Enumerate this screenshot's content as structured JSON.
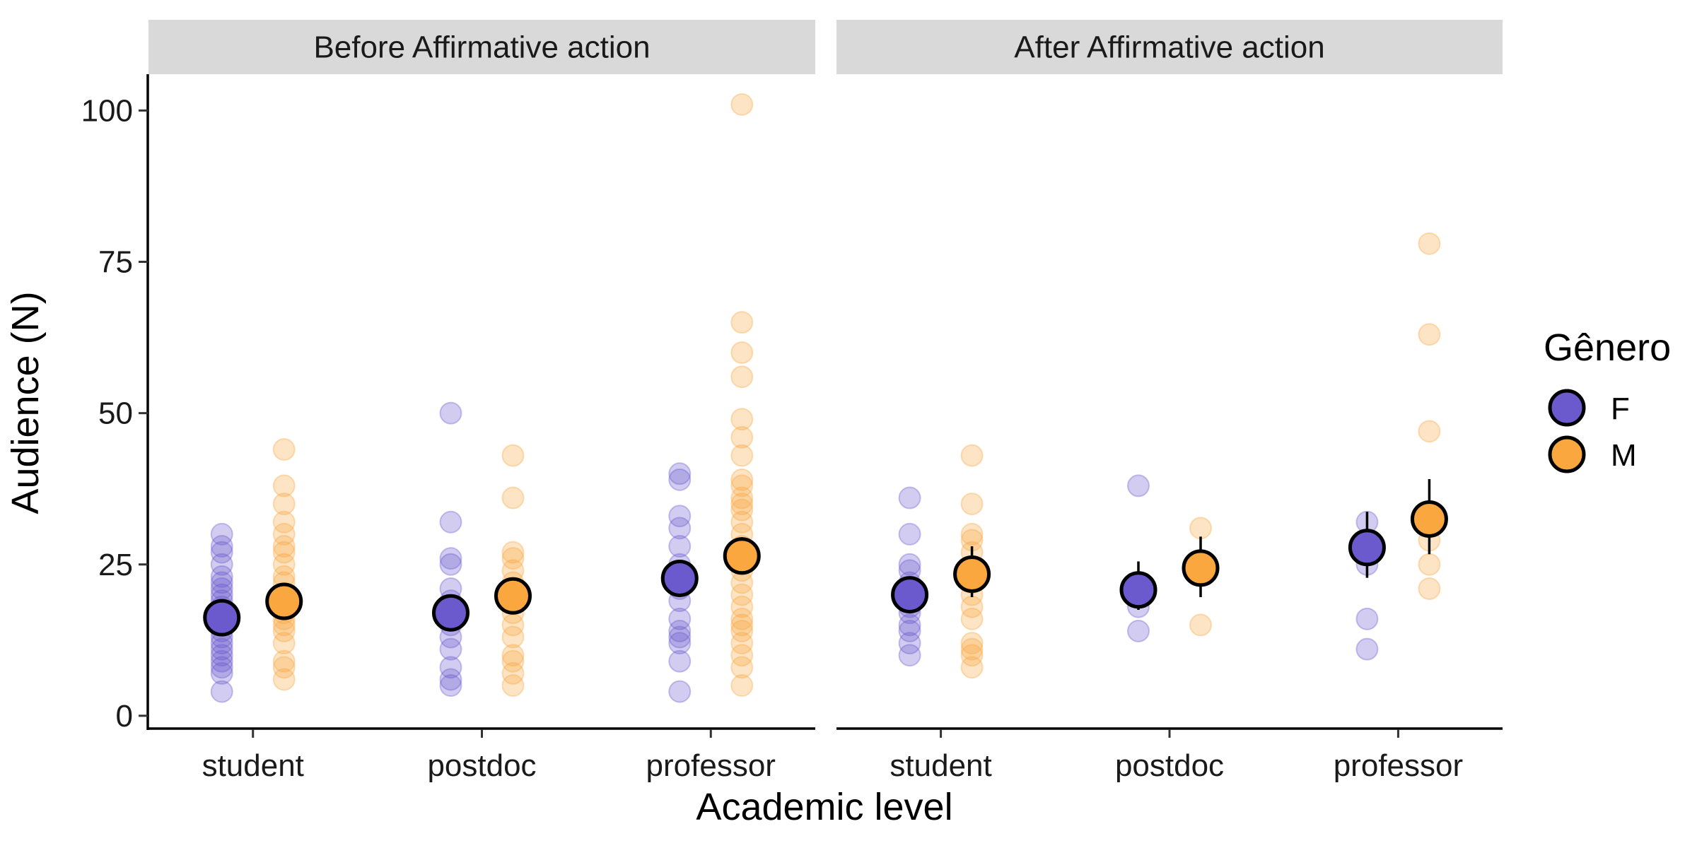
{
  "chart_data": {
    "type": "scatter",
    "xlabel": "Academic level",
    "ylabel": "Audience (N)",
    "ylim": [
      -2,
      106
    ],
    "yticks": [
      0,
      25,
      50,
      75,
      100
    ],
    "categories": [
      "student",
      "postdoc",
      "professor"
    ],
    "legend": {
      "title": "Gênero",
      "position": "right",
      "entries": [
        {
          "label": "F",
          "color": "#6A5ACD"
        },
        {
          "label": "M",
          "color": "#F9A73E"
        }
      ]
    },
    "colors": {
      "F": "#6A5ACD",
      "M": "#F9A73E"
    },
    "grid": false,
    "panels": [
      {
        "title": "Before Affirmative action",
        "points": {
          "student": {
            "F": [
              4,
              7,
              8,
              9,
              10,
              11,
              12,
              13,
              14,
              15,
              16,
              17,
              18,
              19,
              20,
              21,
              22,
              23,
              25,
              27,
              28,
              30
            ],
            "M": [
              6,
              8,
              9,
              12,
              14,
              15,
              16,
              17,
              18,
              19,
              20,
              22,
              23,
              25,
              27,
              28,
              30,
              32,
              35,
              38,
              44
            ]
          },
          "postdoc": {
            "F": [
              5,
              6,
              8,
              11,
              13,
              15,
              17,
              18,
              19,
              21,
              25,
              26,
              32,
              50
            ],
            "M": [
              5,
              7,
              9,
              10,
              13,
              15,
              17,
              19,
              20,
              22,
              24,
              26,
              27,
              36,
              43
            ]
          },
          "professor": {
            "F": [
              4,
              9,
              12,
              13,
              14,
              16,
              19,
              21,
              25,
              28,
              31,
              33,
              39,
              40
            ],
            "M": [
              5,
              8,
              10,
              12,
              14,
              15,
              16,
              18,
              20,
              22,
              24,
              25,
              26,
              28,
              30,
              32,
              34,
              35,
              36,
              38,
              39,
              43,
              46,
              49,
              56,
              60,
              65,
              101
            ]
          }
        },
        "means": {
          "student": {
            "F": {
              "mean": 16.2,
              "ci": [
                15.2,
                17.2
              ]
            },
            "M": {
              "mean": 18.9,
              "ci": [
                17.6,
                20.2
              ]
            }
          },
          "postdoc": {
            "F": {
              "mean": 17.0,
              "ci": [
                15.3,
                18.7
              ]
            },
            "M": {
              "mean": 19.8,
              "ci": [
                18.3,
                21.3
              ]
            }
          },
          "professor": {
            "F": {
              "mean": 22.7,
              "ci": [
                20.2,
                25.5
              ]
            },
            "M": {
              "mean": 26.4,
              "ci": [
                23.6,
                29.5
              ]
            }
          }
        }
      },
      {
        "title": "After Affirmative action",
        "points": {
          "student": {
            "F": [
              10,
              12,
              14,
              15,
              17,
              18,
              20,
              22,
              24,
              25,
              30,
              36
            ],
            "M": [
              8,
              10,
              11,
              12,
              16,
              18,
              20,
              22,
              24,
              27,
              29,
              30,
              35,
              43
            ]
          },
          "postdoc": {
            "F": [
              14,
              18,
              20,
              22,
              38
            ],
            "M": [
              15,
              24,
              31
            ]
          },
          "professor": {
            "F": [
              11,
              16,
              25,
              28,
              32
            ],
            "M": [
              21,
              25,
              29,
              47,
              63,
              78
            ]
          }
        },
        "means": {
          "student": {
            "F": {
              "mean": 20.0,
              "ci": [
                17.6,
                22.7
              ]
            },
            "M": {
              "mean": 23.4,
              "ci": [
                19.6,
                28.0
              ]
            }
          },
          "postdoc": {
            "F": {
              "mean": 20.8,
              "ci": [
                17.5,
                25.5
              ]
            },
            "M": {
              "mean": 24.4,
              "ci": [
                19.6,
                29.6
              ]
            }
          },
          "professor": {
            "F": {
              "mean": 27.8,
              "ci": [
                22.8,
                33.7
              ]
            },
            "M": {
              "mean": 32.5,
              "ci": [
                26.7,
                39.1
              ]
            }
          }
        }
      }
    ]
  }
}
